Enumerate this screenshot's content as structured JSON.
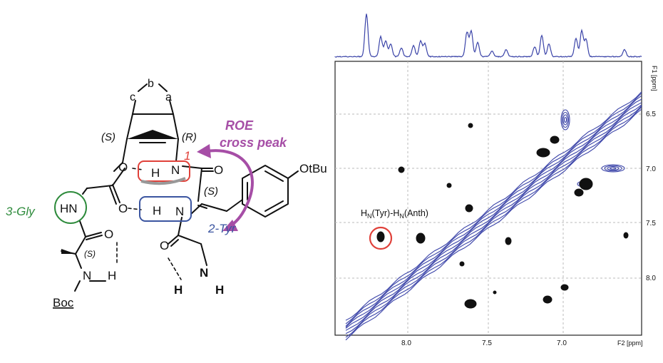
{
  "structure": {
    "ring_labels": {
      "a": "a",
      "b": "b",
      "c": "c"
    },
    "stereo": {
      "s1": "(S)",
      "r1": "(R)",
      "s2": "(S)",
      "s3": "(S)"
    },
    "residue_labels": {
      "gly": "3-Gly",
      "tyr": "2-Tyr",
      "anth": "1"
    },
    "atoms": {
      "nh_gly": "HN",
      "o_top1": "O",
      "o_top2": "O",
      "o_mid": "O",
      "o_gly": "O",
      "o_bottom": "O",
      "n_anth": "N",
      "h_anth": "H",
      "n_tyr": "N",
      "h_tyr": "H",
      "n_boc": "N",
      "h_boc": "H",
      "n_amine": "N",
      "h_amine1": "H",
      "h_amine2": "H",
      "otbu": "OtBu",
      "boc": "Boc"
    },
    "roe_label_line1": "ROE",
    "roe_label_line2": "cross peak",
    "colors": {
      "roe": "#a64ea6",
      "gly": "#2e8b3c",
      "tyr": "#3b55a0",
      "anth": "#e0413a",
      "bond": "#111111"
    }
  },
  "nmr": {
    "f1_axis_label": "F1 [ppm]",
    "f2_axis_label": "F2 [ppm]",
    "f1_ticks": [
      "6.5",
      "7.0",
      "7.5",
      "8.0"
    ],
    "f2_ticks": [
      "8.0",
      "7.5",
      "7.0"
    ],
    "annotation_main": "H",
    "annotation_sub1": "N",
    "annotation_mid": "(Tyr)-H",
    "annotation_sub2": "N",
    "annotation_tail": "(Anth)",
    "colors": {
      "spectrum": "#3a43a8",
      "crosspeak": "#111111",
      "highlight": "#e0413a",
      "grid": "#bbbbbb"
    }
  }
}
